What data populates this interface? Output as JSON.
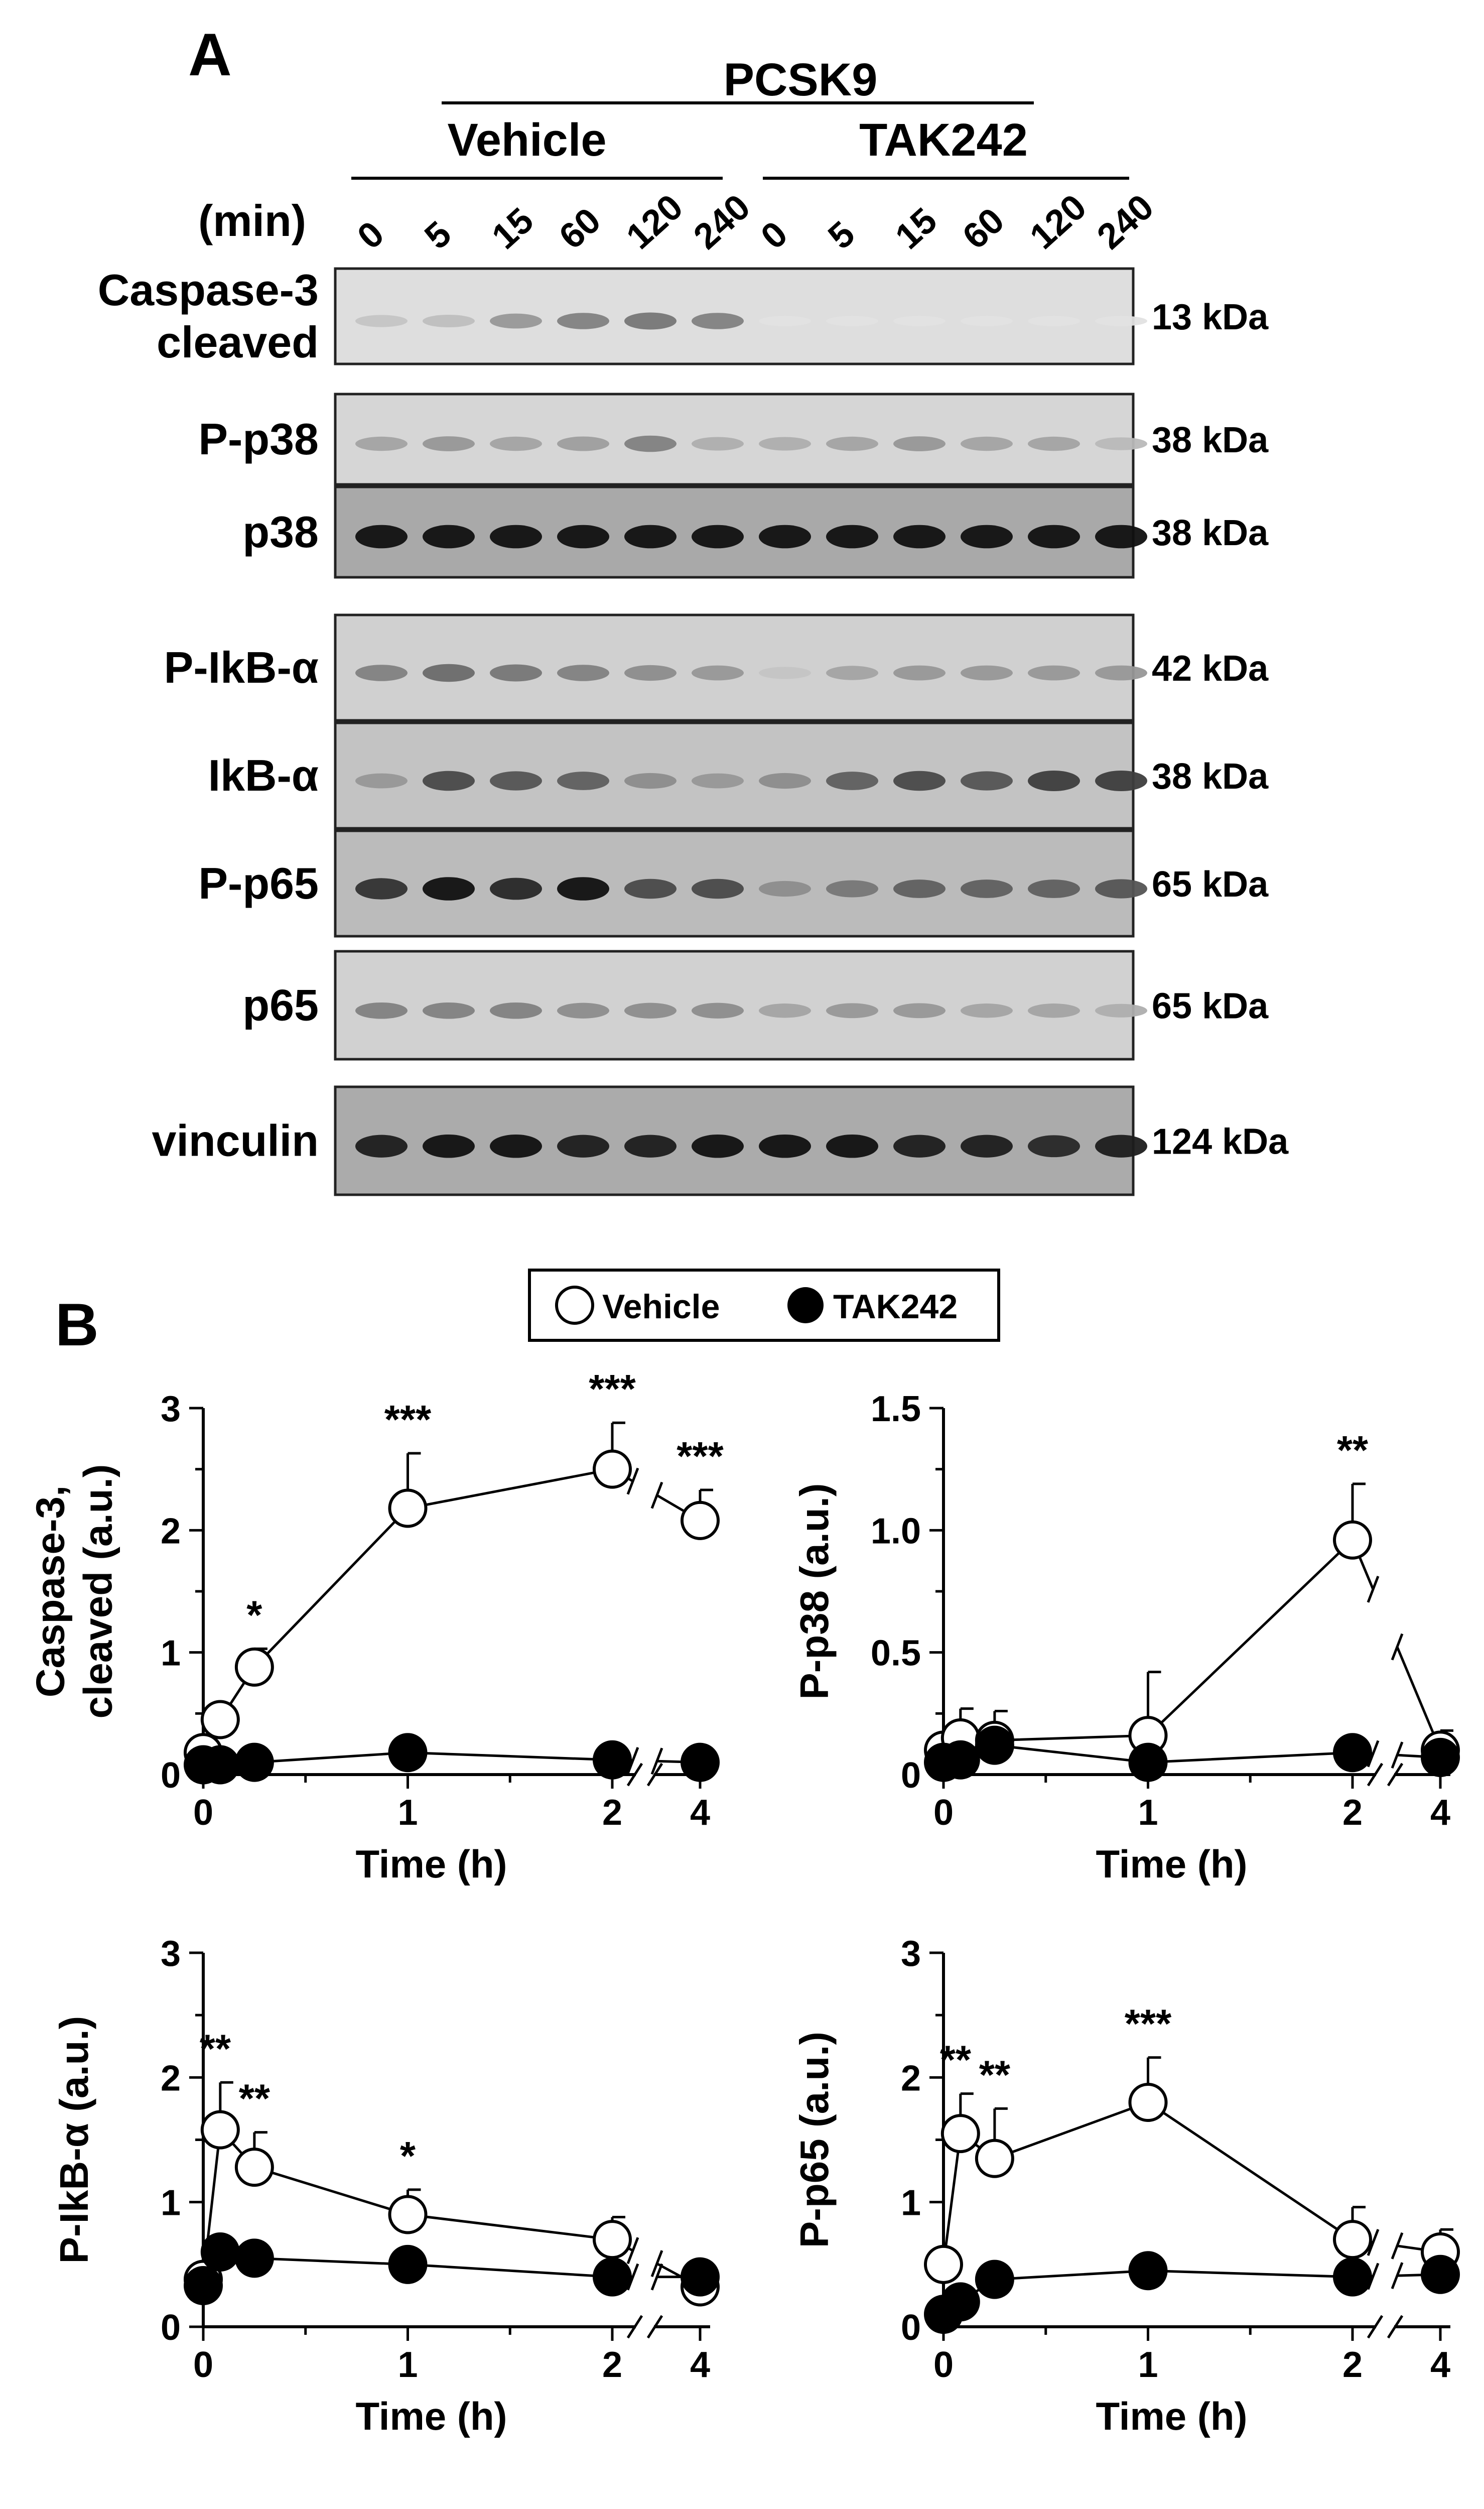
{
  "panel_labels": {
    "a": "A",
    "b": "B"
  },
  "blot": {
    "treatment_label": "PCSK9",
    "group_labels": [
      "Vehicle",
      "TAK242"
    ],
    "time_label": "(min)",
    "time_points": [
      "0",
      "5",
      "15",
      "60",
      "120",
      "240",
      "0",
      "5",
      "15",
      "60",
      "120",
      "240"
    ],
    "rows": [
      {
        "label": "Caspase-3\ncleaved",
        "mw": "13 kDa",
        "intensity": [
          0.15,
          0.18,
          0.35,
          0.45,
          0.5,
          0.45,
          0.02,
          0.02,
          0.02,
          0.02,
          0.02,
          0.02
        ]
      },
      {
        "label": "P-p38",
        "mw": "38 kDa",
        "intensity": [
          0.3,
          0.35,
          0.3,
          0.32,
          0.45,
          0.25,
          0.25,
          0.3,
          0.35,
          0.3,
          0.3,
          0.2
        ]
      },
      {
        "label": "p38",
        "mw": "38 kDa",
        "intensity": [
          0.95,
          0.95,
          0.95,
          0.95,
          0.95,
          0.95,
          0.95,
          0.95,
          0.95,
          0.95,
          0.95,
          0.95
        ]
      },
      {
        "label": "P-IkB-α",
        "mw": "42 kDa",
        "intensity": [
          0.45,
          0.55,
          0.5,
          0.45,
          0.4,
          0.35,
          0.15,
          0.3,
          0.35,
          0.35,
          0.35,
          0.35
        ]
      },
      {
        "label": "IkB-α",
        "mw": "38 kDa",
        "intensity": [
          0.35,
          0.7,
          0.65,
          0.6,
          0.4,
          0.35,
          0.4,
          0.6,
          0.7,
          0.65,
          0.75,
          0.75
        ]
      },
      {
        "label": "P-p65",
        "mw": "65 kDa",
        "intensity": [
          0.8,
          0.95,
          0.85,
          0.95,
          0.7,
          0.7,
          0.4,
          0.5,
          0.6,
          0.6,
          0.6,
          0.65
        ]
      },
      {
        "label": "p65",
        "mw": "65 kDa",
        "intensity": [
          0.45,
          0.45,
          0.45,
          0.4,
          0.4,
          0.4,
          0.3,
          0.35,
          0.35,
          0.3,
          0.3,
          0.25
        ]
      },
      {
        "label": "vinculin",
        "mw": "124 kDa",
        "intensity": [
          0.9,
          0.95,
          0.95,
          0.9,
          0.9,
          0.95,
          0.95,
          0.95,
          0.9,
          0.9,
          0.85,
          0.9
        ]
      }
    ]
  },
  "legend": {
    "vehicle": "Vehicle",
    "tak242": "TAK242"
  },
  "chart_data": [
    {
      "type": "line",
      "ylabel": "Caspase-3,\ncleaved (a.u.)",
      "xlabel": "Time (h)",
      "ylim": [
        0,
        3
      ],
      "yticks": [
        "0",
        "1",
        "2",
        "3"
      ],
      "xticks": [
        "0",
        "1",
        "2",
        "4"
      ],
      "series": [
        {
          "name": "Vehicle",
          "x": [
            0,
            0.083,
            0.25,
            1,
            2,
            4
          ],
          "y": [
            0.18,
            0.45,
            0.88,
            2.18,
            2.5,
            2.08
          ],
          "err": [
            0,
            0,
            0.15,
            0.45,
            0.38,
            0.25
          ]
        },
        {
          "name": "TAK242",
          "x": [
            0,
            0.083,
            0.25,
            1,
            2,
            4
          ],
          "y": [
            0.08,
            0.08,
            0.1,
            0.18,
            0.12,
            0.1
          ],
          "err": [
            0,
            0,
            0,
            0,
            0,
            0
          ]
        }
      ],
      "annotations": [
        {
          "x": 0.25,
          "text": "*"
        },
        {
          "x": 1,
          "text": "***"
        },
        {
          "x": 2,
          "text": "***"
        },
        {
          "x": 4,
          "text": "***"
        }
      ]
    },
    {
      "type": "line",
      "ylabel": "P-p38 (a.u.)",
      "xlabel": "Time (h)",
      "ylim": [
        0,
        1.5
      ],
      "yticks": [
        "0",
        "0.5",
        "1.0",
        "1.5"
      ],
      "xticks": [
        "0",
        "1",
        "2",
        "4"
      ],
      "series": [
        {
          "name": "Vehicle",
          "x": [
            0,
            0.083,
            0.25,
            1,
            2,
            4
          ],
          "y": [
            0.1,
            0.15,
            0.14,
            0.16,
            0.96,
            0.1
          ],
          "err": [
            0,
            0.12,
            0.12,
            0.26,
            0.23,
            0.08
          ]
        },
        {
          "name": "TAK242",
          "x": [
            0,
            0.083,
            0.25,
            1,
            2,
            4
          ],
          "y": [
            0.05,
            0.06,
            0.12,
            0.05,
            0.09,
            0.07
          ],
          "err": [
            0,
            0,
            0,
            0,
            0,
            0
          ]
        }
      ],
      "annotations": [
        {
          "x": 2,
          "text": "**"
        }
      ]
    },
    {
      "type": "line",
      "ylabel": "P-IkB-α (a.u.)",
      "xlabel": "Time (h)",
      "ylim": [
        0,
        3
      ],
      "yticks": [
        "0",
        "1",
        "2",
        "3"
      ],
      "xticks": [
        "0",
        "1",
        "2",
        "4"
      ],
      "series": [
        {
          "name": "Vehicle",
          "x": [
            0,
            0.083,
            0.25,
            1,
            2,
            4
          ],
          "y": [
            0.38,
            1.58,
            1.28,
            0.9,
            0.7,
            0.32
          ],
          "err": [
            0,
            0.38,
            0.28,
            0.2,
            0.18,
            0
          ]
        },
        {
          "name": "TAK242",
          "x": [
            0,
            0.083,
            0.25,
            1,
            2,
            4
          ],
          "y": [
            0.33,
            0.6,
            0.55,
            0.5,
            0.4,
            0.4
          ],
          "err": [
            0,
            0,
            0,
            0,
            0,
            0
          ]
        }
      ],
      "annotations": [
        {
          "x": 0.083,
          "text": "**"
        },
        {
          "x": 0.25,
          "text": "**"
        },
        {
          "x": 1,
          "text": "*"
        }
      ]
    },
    {
      "type": "line",
      "ylabel": "P-p65 (a.u.)",
      "xlabel": "Time (h)",
      "ylim": [
        0,
        3
      ],
      "yticks": [
        "0",
        "1",
        "2",
        "3"
      ],
      "xticks": [
        "0",
        "1",
        "2",
        "4"
      ],
      "series": [
        {
          "name": "Vehicle",
          "x": [
            0,
            0.083,
            0.25,
            1,
            2,
            4
          ],
          "y": [
            0.5,
            1.55,
            1.35,
            1.8,
            0.7,
            0.6
          ],
          "err": [
            0,
            0.32,
            0.4,
            0.36,
            0.26,
            0.18
          ]
        },
        {
          "name": "TAK242",
          "x": [
            0,
            0.083,
            0.25,
            1,
            2,
            4
          ],
          "y": [
            0.1,
            0.2,
            0.38,
            0.45,
            0.4,
            0.42
          ],
          "err": [
            0,
            0,
            0,
            0,
            0,
            0
          ]
        }
      ],
      "annotations": [
        {
          "x": 0.083,
          "text": "**"
        },
        {
          "x": 0.25,
          "text": "**"
        },
        {
          "x": 1,
          "text": "***"
        }
      ]
    }
  ]
}
